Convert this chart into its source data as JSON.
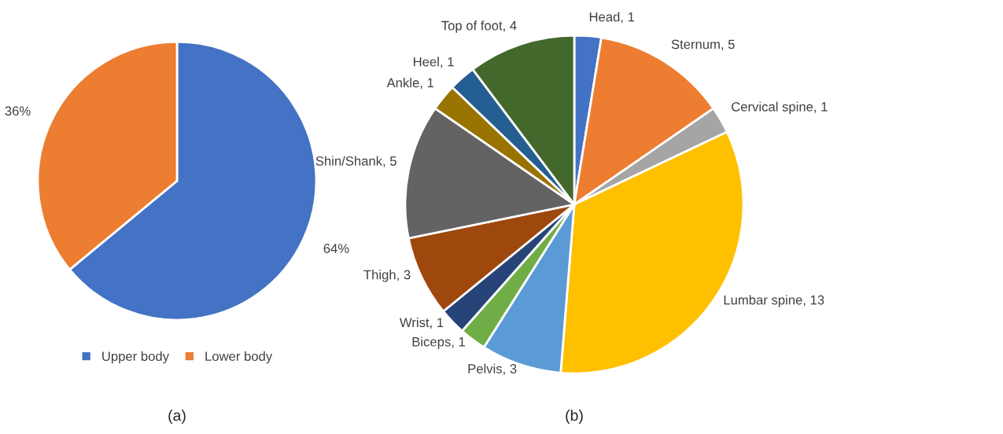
{
  "chart_data": [
    {
      "type": "pie",
      "title": "(a)",
      "categories": [
        "Upper body",
        "Lower body"
      ],
      "values": [
        64,
        36
      ],
      "colors": [
        "#4472c4",
        "#ed7d31"
      ],
      "value_labels": [
        "64%",
        "36%"
      ],
      "legend": "bottom"
    },
    {
      "type": "pie",
      "title": "(b)",
      "categories": [
        "Head",
        "Sternum",
        "Cervical spine",
        "Lumbar spine",
        "Pelvis",
        "Biceps",
        "Wrist",
        "Thigh",
        "Shin/Shank",
        "Ankle",
        "Heel",
        "Top of foot"
      ],
      "values": [
        1,
        5,
        1,
        13,
        3,
        1,
        1,
        3,
        5,
        1,
        1,
        4
      ],
      "colors": [
        "#4472c4",
        "#ed7d31",
        "#a5a5a5",
        "#ffc000",
        "#5b9bd5",
        "#70ad47",
        "#264478",
        "#9e480e",
        "#636363",
        "#997300",
        "#255e91",
        "#43682b"
      ],
      "value_labels": [
        ", 1",
        ", 5",
        ", 1",
        ", 13",
        ", 3",
        ", 1",
        ", 1",
        ", 3",
        ", 5",
        ", 1",
        ", 1",
        ", 4"
      ]
    }
  ]
}
